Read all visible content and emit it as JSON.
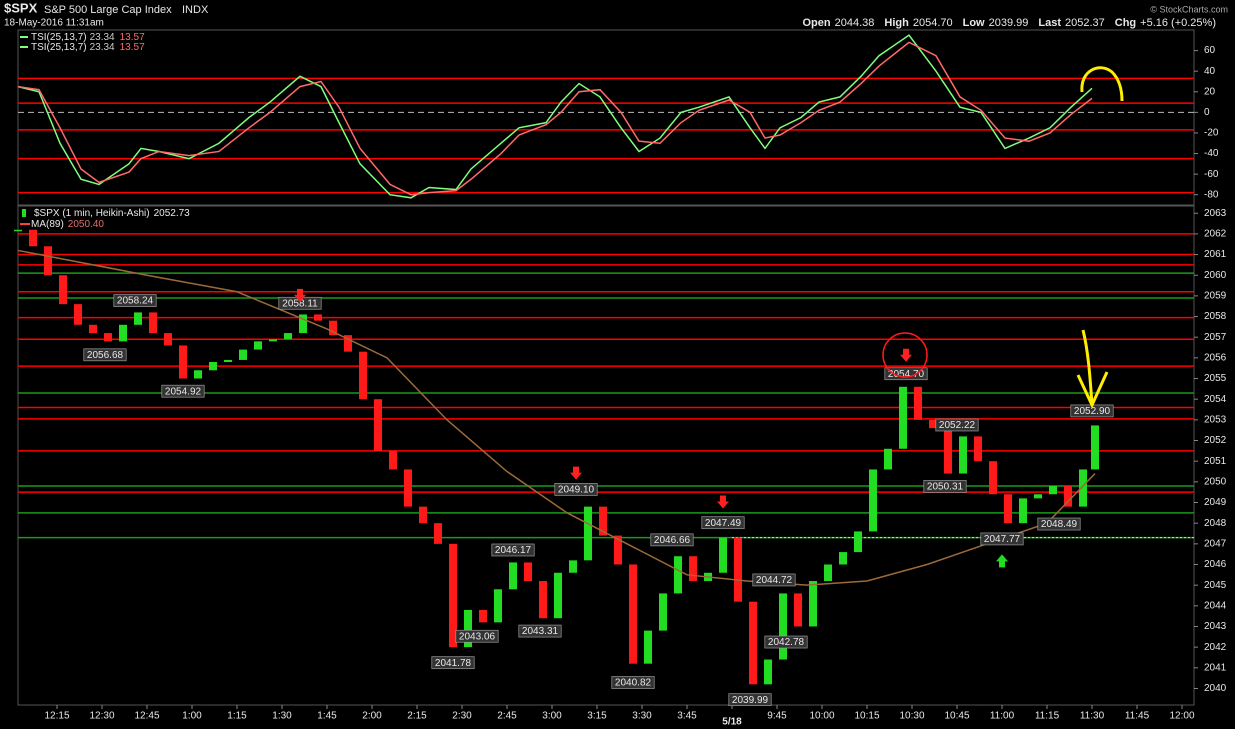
{
  "header": {
    "symbol": "$SPX",
    "name": "S&P 500 Large Cap Index",
    "exchange": "INDX",
    "timestamp": "18-May-2016 11:31am",
    "quote": [
      {
        "label": "Open",
        "value": "2044.38"
      },
      {
        "label": "High",
        "value": "2054.70"
      },
      {
        "label": "Low",
        "value": "2039.99"
      },
      {
        "label": "Last",
        "value": "2052.37"
      },
      {
        "label": "Chg",
        "value": "+5.16 (+0.25%)"
      }
    ],
    "credit": "© StockCharts.com"
  },
  "chart_data": [
    {
      "type": "line",
      "xlim": [
        -13,
        379
      ],
      "ylim": [
        -90,
        80
      ],
      "yticks": [
        60,
        40,
        20,
        0,
        -20,
        -40,
        -60,
        -80
      ],
      "dashed_lines": [
        0
      ],
      "hlines": [
        {
          "color": "#ff0000",
          "values": [
            33,
            9,
            -17,
            -45,
            -78
          ]
        }
      ],
      "series": [
        {
          "name": "TSI(25,13,7)",
          "color": "#7dff7d",
          "x": [
            -13,
            -6,
            1,
            8,
            14,
            24,
            28,
            34,
            44,
            54,
            64,
            71,
            81,
            88,
            94,
            101,
            111,
            118,
            124,
            133,
            138,
            148,
            154,
            163,
            168,
            174,
            181,
            188,
            194,
            201,
            208,
            214,
            224,
            231,
            236,
            241,
            248,
            254,
            261,
            268,
            274,
            284,
            293,
            301,
            308,
            316,
            324,
            331,
            338,
            345
          ],
          "values": [
            25,
            20,
            -30,
            -65,
            -70,
            -50,
            -35,
            -38,
            -45,
            -30,
            -5,
            10,
            35,
            25,
            -10,
            -50,
            -80,
            -83,
            -73,
            -75,
            -55,
            -30,
            -15,
            -10,
            10,
            28,
            15,
            -15,
            -38,
            -25,
            0,
            5,
            15,
            -15,
            -35,
            -15,
            -5,
            10,
            15,
            35,
            55,
            75,
            40,
            5,
            0,
            -35,
            -25,
            -15,
            5,
            23.34
          ]
        },
        {
          "color": "#ff6a6a",
          "x": [
            -13,
            -6,
            1,
            8,
            14,
            24,
            28,
            34,
            44,
            54,
            64,
            71,
            81,
            88,
            94,
            101,
            111,
            118,
            124,
            133,
            138,
            148,
            154,
            163,
            168,
            174,
            181,
            188,
            194,
            201,
            208,
            214,
            224,
            231,
            236,
            241,
            248,
            254,
            261,
            268,
            274,
            284,
            293,
            301,
            308,
            316,
            324,
            331,
            338,
            345
          ],
          "values": [
            25,
            22,
            -15,
            -55,
            -68,
            -58,
            -45,
            -38,
            -42,
            -38,
            -15,
            0,
            25,
            30,
            5,
            -35,
            -70,
            -80,
            -78,
            -76,
            -65,
            -40,
            -22,
            -12,
            0,
            20,
            22,
            0,
            -28,
            -30,
            -10,
            2,
            12,
            0,
            -25,
            -22,
            -10,
            2,
            10,
            28,
            45,
            68,
            55,
            15,
            2,
            -25,
            -28,
            -20,
            -2,
            13.57
          ]
        }
      ]
    },
    {
      "type": "candlestick",
      "xlim": [
        -13,
        379
      ],
      "ylim": [
        2039.2,
        2063.35
      ],
      "yticks": [
        2040,
        2041,
        2042,
        2043,
        2044,
        2045,
        2046,
        2047,
        2048,
        2049,
        2050,
        2051,
        2052,
        2053,
        2054,
        2055,
        2056,
        2057,
        2058,
        2059,
        2060,
        2061,
        2062,
        2063
      ],
      "xticks": [
        {
          "value": 0,
          "label": "12:15"
        },
        {
          "value": 15,
          "label": "12:30"
        },
        {
          "value": 30,
          "label": "12:45"
        },
        {
          "value": 45,
          "label": "1:00"
        },
        {
          "value": 60,
          "label": "1:15"
        },
        {
          "value": 75,
          "label": "1:30"
        },
        {
          "value": 90,
          "label": "1:45"
        },
        {
          "value": 105,
          "label": "2:00"
        },
        {
          "value": 120,
          "label": "2:15"
        },
        {
          "value": 135,
          "label": "2:30"
        },
        {
          "value": 150,
          "label": "2:45"
        },
        {
          "value": 165,
          "label": "3:00"
        },
        {
          "value": 180,
          "label": "3:15"
        },
        {
          "value": 195,
          "label": "3:30"
        },
        {
          "value": 210,
          "label": "3:45"
        },
        {
          "value": 225,
          "label": "5/18"
        },
        {
          "value": 240,
          "label": "9:45"
        },
        {
          "value": 255,
          "label": "10:00"
        },
        {
          "value": 270,
          "label": "10:15"
        },
        {
          "value": 285,
          "label": "10:30"
        },
        {
          "value": 300,
          "label": "10:45"
        },
        {
          "value": 315,
          "label": "11:00"
        },
        {
          "value": 330,
          "label": "11:15"
        },
        {
          "value": 345,
          "label": "11:30"
        },
        {
          "value": 360,
          "label": "11:45"
        },
        {
          "value": 375,
          "label": "12:00"
        }
      ],
      "hlines": [
        {
          "color": "#ff0000",
          "values": [
            2062.0,
            2061.0,
            2060.5,
            2059.2,
            2057.95,
            2056.9,
            2055.6,
            2053.6,
            2053.05,
            2051.5,
            2049.5
          ]
        },
        {
          "color": "#1a9a1a",
          "values": [
            2060.1,
            2058.9,
            2054.3,
            2049.8,
            2048.5,
            2047.3
          ]
        }
      ],
      "dashed_line": {
        "value": 2047.3,
        "from_x": 225
      },
      "series": [
        {
          "name": "$SPX (1 min, Heikin-Ashi)",
          "up_color": "#22dd22",
          "down_color": "#ff1a1a",
          "x": [
            -13,
            -8,
            -3,
            2,
            7,
            12,
            17,
            22,
            27,
            32,
            37,
            42,
            47,
            52,
            57,
            62,
            67,
            72,
            77,
            82,
            87,
            92,
            97,
            102,
            107,
            112,
            117,
            122,
            127,
            132,
            137,
            142,
            147,
            152,
            157,
            162,
            167,
            172,
            177,
            182,
            187,
            192,
            197,
            202,
            207,
            212,
            217,
            222,
            227,
            232,
            237,
            242,
            247,
            252,
            257,
            262,
            267,
            272,
            277,
            282,
            287,
            292,
            297,
            302,
            307,
            312,
            317,
            322,
            327,
            332,
            337,
            342,
            346
          ],
          "values": [
            2062.2,
            2061.4,
            2060.0,
            2058.6,
            2057.6,
            2057.2,
            2056.8,
            2057.6,
            2058.2,
            2057.2,
            2056.6,
            2055.0,
            2055.4,
            2055.8,
            2055.9,
            2056.4,
            2056.8,
            2056.9,
            2057.2,
            2058.1,
            2057.8,
            2057.1,
            2056.3,
            2054.0,
            2051.5,
            2050.6,
            2048.8,
            2048.0,
            2047.0,
            2042.0,
            2043.8,
            2043.2,
            2044.8,
            2046.1,
            2045.2,
            2043.4,
            2045.6,
            2046.2,
            2048.8,
            2047.4,
            2046.0,
            2041.2,
            2042.8,
            2044.6,
            2046.4,
            2045.2,
            2045.6,
            2047.3,
            2044.2,
            2040.2,
            2041.4,
            2044.6,
            2043.0,
            2045.2,
            2046.0,
            2046.6,
            2047.6,
            2050.6,
            2051.6,
            2054.6,
            2053.0,
            2052.6,
            2050.4,
            2052.2,
            2051.0,
            2049.4,
            2048.0,
            2049.2,
            2049.4,
            2049.8,
            2048.8,
            2050.6,
            2052.73
          ]
        },
        {
          "name": "MA(89)",
          "color": "#9c6a3a",
          "value_label": "2050.40",
          "x": [
            -13,
            30,
            60,
            90,
            110,
            130,
            150,
            170,
            190,
            210,
            230,
            250,
            270,
            290,
            310,
            330,
            346
          ],
          "values": [
            2061.2,
            2060.0,
            2059.2,
            2057.4,
            2056.0,
            2053.0,
            2050.5,
            2048.5,
            2047.0,
            2045.5,
            2045.2,
            2045.0,
            2045.2,
            2046.0,
            2047.0,
            2048.0,
            2050.4
          ]
        }
      ],
      "annotations": {
        "x": [
          26,
          16,
          42,
          81,
          132,
          140,
          152,
          161,
          173,
          192,
          205,
          222,
          231,
          239,
          243,
          283,
          300,
          296,
          315,
          334,
          345
        ],
        "values": [
          2058.24,
          2056.68,
          2054.92,
          2058.11,
          2041.78,
          2043.06,
          2046.17,
          2043.31,
          2049.1,
          2040.82,
          2046.66,
          2047.49,
          2039.99,
          2044.72,
          2042.78,
          2054.7,
          2052.22,
          2050.31,
          2047.77,
          2048.49,
          2052.9
        ],
        "value_labels": [
          "2058.24",
          "2056.68",
          "2054.92",
          "2058.11",
          "2041.78",
          "2043.06",
          "2046.17",
          "2043.31",
          "2049.10",
          "2040.82",
          "2046.66",
          "2047.49",
          "2039.99",
          "2044.72",
          "2042.78",
          "2054.70",
          "2052.22",
          "2050.31",
          "2047.77",
          "2048.49",
          "2052.90"
        ],
        "placement": [
          "above",
          "below",
          "below",
          "above",
          "below",
          "below",
          "above",
          "below",
          "above",
          "below",
          "above",
          "above",
          "below",
          "above",
          "below",
          "above",
          "above",
          "below",
          "below",
          "below",
          "above"
        ]
      },
      "markers": [
        {
          "x": 81,
          "value": 2059.0,
          "direction": "down",
          "color": "#ff2020"
        },
        {
          "x": 173,
          "value": 2050.4,
          "direction": "down",
          "color": "#ff2020"
        },
        {
          "x": 222,
          "value": 2049.0,
          "direction": "down",
          "color": "#ff2020"
        },
        {
          "x": 283,
          "value": 2056.1,
          "direction": "down",
          "color": "#ff2020"
        },
        {
          "x": 315,
          "value": 2046.2,
          "direction": "up",
          "color": "#22dd22"
        }
      ]
    }
  ]
}
